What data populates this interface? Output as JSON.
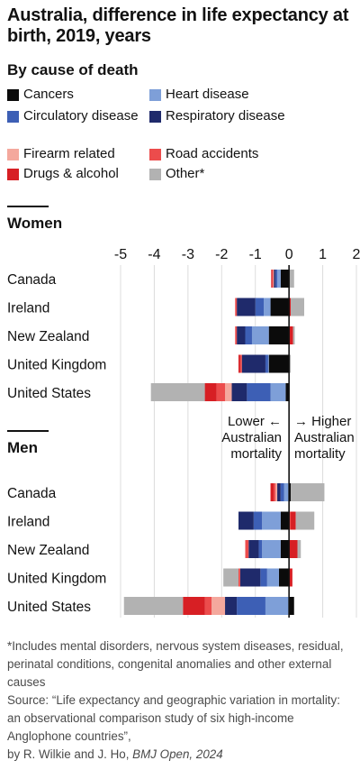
{
  "title": "Australia, difference in life expectancy at birth, 2019, years",
  "subtitle": "By cause of death",
  "legend": [
    {
      "label": "Cancers",
      "color": "#0b0b0b"
    },
    {
      "label": "Heart disease",
      "color": "#7e9fd8"
    },
    {
      "label": "Circulatory disease",
      "color": "#3d5fb5"
    },
    {
      "label": "Respiratory disease",
      "color": "#1f2a6b"
    },
    {
      "label": "Firearm related",
      "color": "#f4a89d"
    },
    {
      "label": "Road accidents",
      "color": "#ec4c4c"
    },
    {
      "label": "Drugs & alcohol",
      "color": "#d71f24"
    },
    {
      "label": "Other*",
      "color": "#b2b2b2"
    }
  ],
  "annotations": {
    "lower_line1": "Lower ←",
    "lower_line2": "Australian",
    "lower_line3": "mortality",
    "higher_line1": "→ Higher",
    "higher_line2": "Australian",
    "higher_line3": "mortality"
  },
  "footnote": {
    "note": "*Includes mental disorders, nervous system diseases, residual, perinatal conditions, congenital anomalies and other external causes",
    "source": "Source: “Life expectancy and geographic variation in mortality: an observational comparison study of six high-income Anglophone countries”,",
    "authors": "by R. Wilkie and J. Ho,",
    "journal": "BMJ Open, 2024"
  },
  "chart_data": {
    "type": "bar",
    "orientation": "horizontal",
    "stacked": true,
    "xlim": [
      -5,
      2
    ],
    "xticks": [
      "-5",
      "-4",
      "-3",
      "-2",
      "-1",
      "0",
      "1",
      "2"
    ],
    "categories": [
      "Canada",
      "Ireland",
      "New Zealand",
      "United Kingdom",
      "United States"
    ],
    "series_order": [
      "Cancers",
      "Heart disease",
      "Circulatory disease",
      "Respiratory disease",
      "Firearm related",
      "Road accidents",
      "Drugs & alcohol",
      "Other*"
    ],
    "panels": [
      {
        "name": "Women",
        "rows": [
          {
            "category": "Canada",
            "values": {
              "Cancers": -0.25,
              "Heart disease": -0.1,
              "Circulatory disease": -0.05,
              "Respiratory disease": -0.05,
              "Firearm related": -0.02,
              "Road accidents": -0.03,
              "Drugs & alcohol": -0.03,
              "Other*": 0.15
            }
          },
          {
            "category": "Ireland",
            "values": {
              "Cancers": -0.55,
              "Heart disease": -0.2,
              "Circulatory disease": -0.25,
              "Respiratory disease": -0.55,
              "Firearm related": 0.0,
              "Road accidents": -0.05,
              "Drugs & alcohol": 0.05,
              "Other*": 0.4
            }
          },
          {
            "category": "New Zealand",
            "values": {
              "Cancers": -0.6,
              "Heart disease": -0.5,
              "Circulatory disease": -0.2,
              "Respiratory disease": -0.25,
              "Firearm related": 0.0,
              "Road accidents": -0.05,
              "Drugs & alcohol": 0.12,
              "Other*": 0.05
            }
          },
          {
            "category": "United Kingdom",
            "values": {
              "Cancers": -0.6,
              "Heart disease": -0.02,
              "Circulatory disease": -0.08,
              "Respiratory disease": -0.7,
              "Firearm related": 0.0,
              "Road accidents": -0.05,
              "Drugs & alcohol": -0.05,
              "Other*": 0.05
            }
          },
          {
            "category": "United States",
            "values": {
              "Cancers": -0.1,
              "Heart disease": -0.45,
              "Circulatory disease": -0.7,
              "Respiratory disease": -0.45,
              "Firearm related": -0.2,
              "Road accidents": -0.25,
              "Drugs & alcohol": -0.35,
              "Other*": -1.6
            }
          }
        ]
      },
      {
        "name": "Men",
        "rows": [
          {
            "category": "Canada",
            "values": {
              "Cancers": 0.05,
              "Heart disease": -0.15,
              "Circulatory disease": -0.1,
              "Respiratory disease": -0.1,
              "Firearm related": -0.05,
              "Road accidents": -0.05,
              "Drugs & alcohol": -0.1,
              "Other*": 1.0
            }
          },
          {
            "category": "Ireland",
            "values": {
              "Cancers": -0.25,
              "Heart disease": -0.55,
              "Circulatory disease": -0.25,
              "Respiratory disease": -0.45,
              "Firearm related": 0.0,
              "Road accidents": 0.05,
              "Drugs & alcohol": 0.15,
              "Other*": 0.55
            }
          },
          {
            "category": "New Zealand",
            "values": {
              "Cancers": -0.25,
              "Heart disease": -0.55,
              "Circulatory disease": -0.1,
              "Respiratory disease": -0.3,
              "Firearm related": 0.0,
              "Road accidents": -0.1,
              "Drugs & alcohol": 0.25,
              "Other*": 0.1
            }
          },
          {
            "category": "United Kingdom",
            "values": {
              "Cancers": -0.3,
              "Heart disease": -0.35,
              "Circulatory disease": -0.2,
              "Respiratory disease": -0.6,
              "Firearm related": 0.0,
              "Road accidents": -0.05,
              "Drugs & alcohol": 0.1,
              "Other*": -0.45
            }
          },
          {
            "category": "United States",
            "values": {
              "Cancers": 0.15,
              "Heart disease": -0.7,
              "Circulatory disease": -0.85,
              "Respiratory disease": -0.35,
              "Firearm related": -0.4,
              "Road accidents": -0.2,
              "Drugs & alcohol": -0.65,
              "Other*": -1.75
            }
          }
        ]
      }
    ]
  }
}
